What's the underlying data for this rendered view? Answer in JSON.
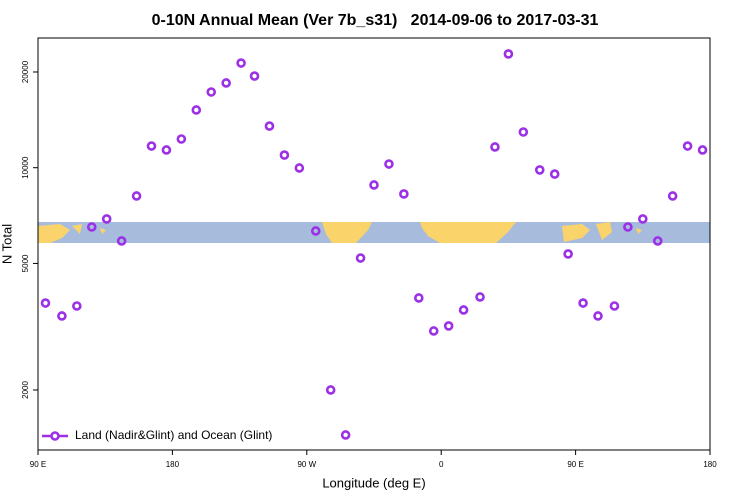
{
  "chart_data": {
    "type": "scatter",
    "title": "0-10N Annual Mean (Ver 7b_s31)   2014-09-06 to 2017-03-31",
    "xlabel": "Longitude (deg E)",
    "ylabel": "N Total",
    "x": [
      95,
      106,
      116,
      126,
      136,
      146,
      156,
      166,
      176,
      186,
      196,
      206,
      216,
      226,
      235,
      245,
      255,
      265,
      276,
      286,
      296,
      306,
      315,
      325,
      335,
      345,
      355,
      365,
      375,
      386,
      396,
      405,
      415,
      426,
      436,
      445,
      455,
      465,
      476,
      485,
      495,
      505,
      515,
      525,
      535
    ],
    "series": [
      {
        "name": "Land (Nadir&Glint) and Ocean (Glint)",
        "color": "#9b30e6",
        "values": [
          3754,
          3418,
          3674,
          6510,
          6900,
          5884,
          8149,
          11700,
          11370,
          12310,
          15190,
          17300,
          18470,
          21340,
          19420,
          13520,
          10960,
          9980,
          6325,
          2000,
          1444,
          5200,
          8825,
          10270,
          8270,
          3894,
          3066,
          3180,
          3570,
          3922,
          11620,
          22790,
          12950,
          9840,
          9550,
          5356,
          3754,
          3418,
          3674,
          6510,
          6900,
          5884,
          8149,
          11700,
          11370
        ]
      }
    ],
    "xlim": [
      90,
      540
    ],
    "xticks": [
      {
        "value": 90,
        "label": "90 E"
      },
      180,
      {
        "value": 270,
        "label": "90 W"
      },
      {
        "value": 360,
        "label": "0"
      },
      {
        "value": 450,
        "label": "90 E"
      },
      {
        "value": 540,
        "label": "180"
      }
    ],
    "ylim": [
      1295,
      25580
    ],
    "yticks": [
      2000,
      5000,
      10000,
      20000
    ],
    "ylog": true,
    "legend": "bottom-left"
  }
}
